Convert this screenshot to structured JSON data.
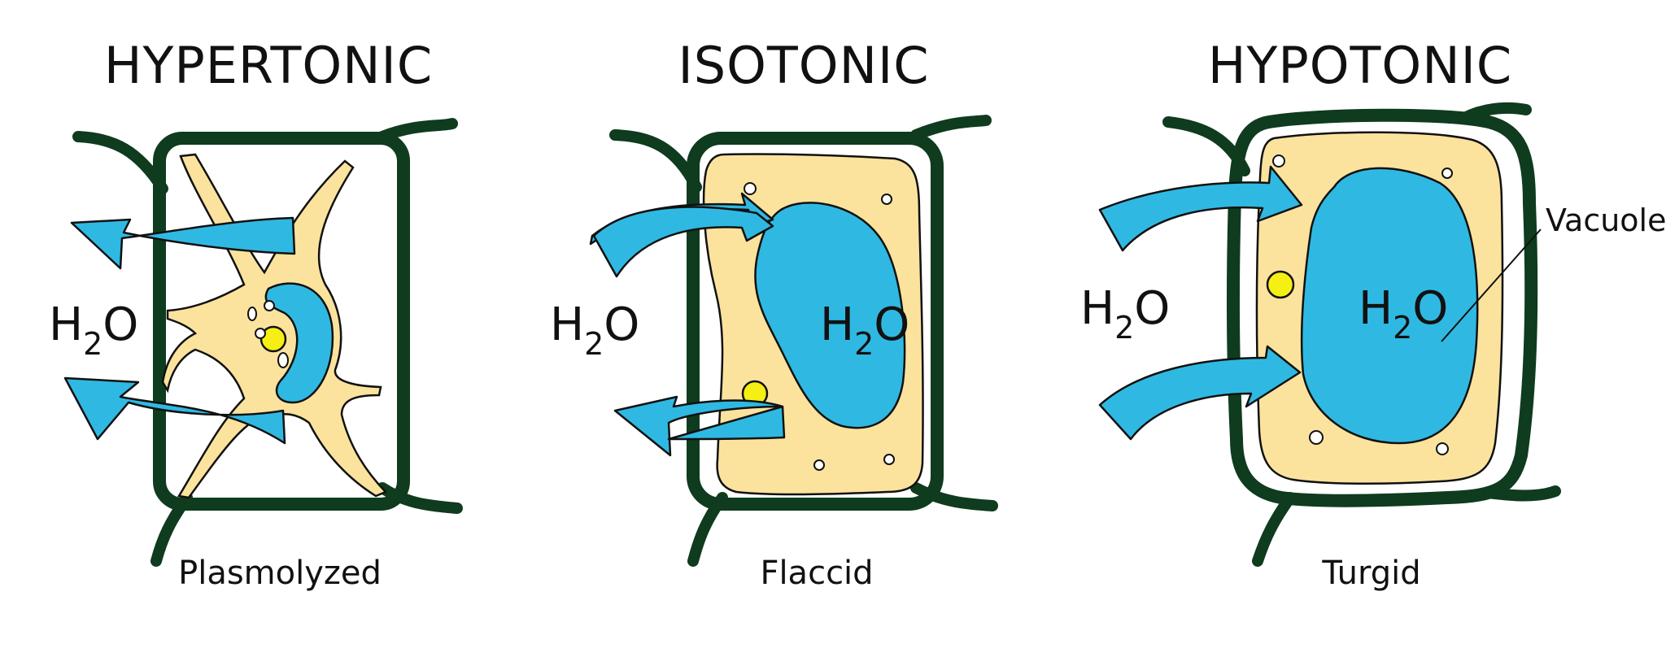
{
  "colors": {
    "cell_wall": "#0f3b1e",
    "cytoplasm": "#fbe39e",
    "vacuole": "#2fb9e2",
    "nucleus": "#f5ef14",
    "outline": "#111111",
    "background": "#ffffff"
  },
  "panels": [
    {
      "title": "HYPERTONIC",
      "caption": "Plasmolyzed",
      "water": {
        "main": "H",
        "sub": "2",
        "end": "O"
      }
    },
    {
      "title": "ISOTONIC",
      "caption": "Flaccid",
      "water": {
        "main": "H",
        "sub": "2",
        "end": "O"
      },
      "vacuole_label": {
        "main": "H",
        "sub": "2",
        "end": "O"
      }
    },
    {
      "title": "HYPOTONIC",
      "caption": "Turgid",
      "water": {
        "main": "H",
        "sub": "2",
        "end": "O"
      },
      "vacuole_label": {
        "main": "H",
        "sub": "2",
        "end": "O"
      },
      "callout": "Vacuole"
    }
  ]
}
